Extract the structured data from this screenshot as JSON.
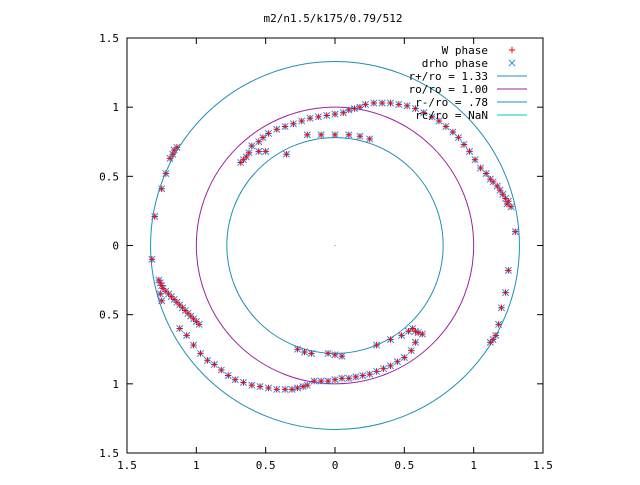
{
  "chart_data": {
    "type": "scatter",
    "title": "m2/n1.5/k175/0.79/512",
    "xlim": [
      -1.5,
      1.5
    ],
    "ylim": [
      -1.5,
      1.5
    ],
    "grid": false,
    "legend_position": "top-right",
    "x_ticks": [
      {
        "value": -1.5,
        "label": "1.5"
      },
      {
        "value": -1.0,
        "label": "1"
      },
      {
        "value": -0.5,
        "label": "0.5"
      },
      {
        "value": 0.0,
        "label": "0"
      },
      {
        "value": 0.5,
        "label": "0.5"
      },
      {
        "value": 1.0,
        "label": "1"
      },
      {
        "value": 1.5,
        "label": "1.5"
      }
    ],
    "y_ticks": [
      {
        "value": 1.5,
        "label": "1.5"
      },
      {
        "value": 1.0,
        "label": "1"
      },
      {
        "value": 0.5,
        "label": "0.5"
      },
      {
        "value": 0.0,
        "label": "0"
      },
      {
        "value": -0.5,
        "label": "0.5"
      },
      {
        "value": -1.0,
        "label": "1"
      },
      {
        "value": -1.5,
        "label": "1.5"
      }
    ],
    "circles": [
      {
        "name": "r+/ro = 1.33",
        "radius": 1.33,
        "color": "#1e90b4"
      },
      {
        "name": "ro/ro = 1.00",
        "radius": 1.0,
        "color": "#a020a0"
      },
      {
        "name": "r-/ro = .78",
        "radius": 0.78,
        "color": "#1e90b4"
      },
      {
        "name": "rc/ro = NaN",
        "radius": null,
        "color": "#00c8c8"
      }
    ],
    "series": [
      {
        "name": "W phase",
        "marker": "+",
        "color": "#ff0000",
        "points": [
          [
            -1.32,
            -0.1
          ],
          [
            -1.3,
            0.21
          ],
          [
            -1.25,
            0.41
          ],
          [
            -1.22,
            0.52
          ],
          [
            -1.19,
            0.63
          ],
          [
            -1.17,
            0.66
          ],
          [
            -1.16,
            0.69
          ],
          [
            -1.14,
            0.71
          ],
          [
            -1.27,
            -0.25
          ],
          [
            -1.26,
            -0.27
          ],
          [
            -1.25,
            -0.29
          ],
          [
            -1.24,
            -0.31
          ],
          [
            -1.22,
            -0.33
          ],
          [
            -1.2,
            -0.35
          ],
          [
            -1.18,
            -0.37
          ],
          [
            -1.16,
            -0.39
          ],
          [
            -1.14,
            -0.41
          ],
          [
            -1.12,
            -0.43
          ],
          [
            -1.1,
            -0.45
          ],
          [
            -1.08,
            -0.47
          ],
          [
            -1.06,
            -0.49
          ],
          [
            -1.04,
            -0.51
          ],
          [
            -1.02,
            -0.53
          ],
          [
            -1.0,
            -0.55
          ],
          [
            -0.98,
            -0.57
          ],
          [
            -1.26,
            -0.35
          ],
          [
            -1.25,
            -0.4
          ],
          [
            -1.12,
            -0.6
          ],
          [
            -1.07,
            -0.65
          ],
          [
            -1.02,
            -0.72
          ],
          [
            -0.97,
            -0.78
          ],
          [
            -0.92,
            -0.83
          ],
          [
            -0.87,
            -0.86
          ],
          [
            -0.82,
            -0.9
          ],
          [
            -0.77,
            -0.94
          ],
          [
            -0.72,
            -0.97
          ],
          [
            -0.66,
            -0.99
          ],
          [
            -0.6,
            -1.01
          ],
          [
            -0.54,
            -1.02
          ],
          [
            -0.48,
            -1.03
          ],
          [
            -0.42,
            -1.04
          ],
          [
            -0.36,
            -1.04
          ],
          [
            -0.31,
            -1.04
          ],
          [
            -0.27,
            -1.03
          ],
          [
            -0.23,
            -1.02
          ],
          [
            -0.2,
            -1.01
          ],
          [
            -0.15,
            -0.98
          ],
          [
            -0.1,
            -0.98
          ],
          [
            -0.05,
            -0.98
          ],
          [
            0.0,
            -0.97
          ],
          [
            0.05,
            -0.96
          ],
          [
            0.1,
            -0.96
          ],
          [
            0.15,
            -0.95
          ],
          [
            0.2,
            -0.94
          ],
          [
            0.25,
            -0.93
          ],
          [
            0.3,
            -0.91
          ],
          [
            0.35,
            -0.89
          ],
          [
            0.4,
            -0.87
          ],
          [
            0.45,
            -0.84
          ],
          [
            0.5,
            -0.81
          ],
          [
            0.55,
            -0.76
          ],
          [
            0.58,
            -0.7
          ],
          [
            -0.27,
            -0.75
          ],
          [
            -0.22,
            -0.77
          ],
          [
            -0.17,
            -0.78
          ],
          [
            -0.05,
            -0.78
          ],
          [
            0.0,
            -0.79
          ],
          [
            0.05,
            -0.8
          ],
          [
            0.3,
            -0.72
          ],
          [
            0.4,
            -0.68
          ],
          [
            0.48,
            -0.65
          ],
          [
            0.53,
            -0.62
          ],
          [
            0.56,
            -0.6
          ],
          [
            0.58,
            -0.62
          ],
          [
            0.6,
            -0.63
          ],
          [
            0.63,
            -0.64
          ],
          [
            1.12,
            -0.7
          ],
          [
            1.14,
            -0.68
          ],
          [
            1.16,
            -0.65
          ],
          [
            1.18,
            -0.57
          ],
          [
            1.2,
            -0.45
          ],
          [
            1.23,
            -0.34
          ],
          [
            1.25,
            -0.18
          ],
          [
            1.3,
            0.1
          ],
          [
            1.27,
            0.28
          ],
          [
            1.25,
            0.32
          ],
          [
            1.24,
            0.3
          ],
          [
            1.23,
            0.34
          ],
          [
            1.21,
            0.37
          ],
          [
            1.19,
            0.4
          ],
          [
            1.17,
            0.43
          ],
          [
            1.14,
            0.46
          ],
          [
            1.12,
            0.48
          ],
          [
            1.09,
            0.52
          ],
          [
            1.05,
            0.56
          ],
          [
            1.01,
            0.62
          ],
          [
            0.97,
            0.68
          ],
          [
            0.93,
            0.73
          ],
          [
            0.89,
            0.78
          ],
          [
            0.85,
            0.82
          ],
          [
            0.8,
            0.86
          ],
          [
            0.75,
            0.9
          ],
          [
            0.7,
            0.93
          ],
          [
            0.64,
            0.96
          ],
          [
            0.58,
            0.99
          ],
          [
            0.52,
            1.01
          ],
          [
            0.46,
            1.02
          ],
          [
            0.4,
            1.03
          ],
          [
            0.34,
            1.03
          ],
          [
            0.28,
            1.03
          ],
          [
            0.22,
            1.02
          ],
          [
            0.18,
            1.0
          ],
          [
            0.14,
            0.99
          ],
          [
            0.1,
            0.98
          ],
          [
            0.06,
            0.96
          ],
          [
            0.0,
            0.95
          ],
          [
            -0.06,
            0.94
          ],
          [
            -0.12,
            0.93
          ],
          [
            -0.18,
            0.92
          ],
          [
            -0.24,
            0.9
          ],
          [
            -0.3,
            0.88
          ],
          [
            -0.36,
            0.86
          ],
          [
            -0.42,
            0.84
          ],
          [
            -0.48,
            0.81
          ],
          [
            -0.52,
            0.78
          ],
          [
            -0.55,
            0.75
          ],
          [
            -0.6,
            0.72
          ],
          [
            -0.62,
            0.67
          ],
          [
            -0.64,
            0.64
          ],
          [
            -0.66,
            0.62
          ],
          [
            -0.68,
            0.6
          ],
          [
            -0.55,
            0.68
          ],
          [
            -0.5,
            0.68
          ],
          [
            -0.35,
            0.66
          ],
          [
            -0.2,
            0.8
          ],
          [
            -0.1,
            0.8
          ],
          [
            0.0,
            0.8
          ],
          [
            0.1,
            0.8
          ],
          [
            0.18,
            0.79
          ],
          [
            0.25,
            0.77
          ]
        ]
      },
      {
        "name": "drho phase",
        "marker": "x",
        "color": "#1e8cf0",
        "points": [
          [
            -1.32,
            -0.1
          ],
          [
            -1.3,
            0.21
          ],
          [
            -1.25,
            0.41
          ],
          [
            -1.22,
            0.52
          ],
          [
            -1.19,
            0.63
          ],
          [
            -1.17,
            0.66
          ],
          [
            -1.16,
            0.69
          ],
          [
            -1.14,
            0.71
          ],
          [
            -1.27,
            -0.25
          ],
          [
            -1.26,
            -0.27
          ],
          [
            -1.25,
            -0.29
          ],
          [
            -1.24,
            -0.31
          ],
          [
            -1.22,
            -0.33
          ],
          [
            -1.2,
            -0.35
          ],
          [
            -1.18,
            -0.37
          ],
          [
            -1.16,
            -0.39
          ],
          [
            -1.14,
            -0.41
          ],
          [
            -1.12,
            -0.43
          ],
          [
            -1.1,
            -0.45
          ],
          [
            -1.08,
            -0.47
          ],
          [
            -1.06,
            -0.49
          ],
          [
            -1.04,
            -0.51
          ],
          [
            -1.02,
            -0.53
          ],
          [
            -1.0,
            -0.55
          ],
          [
            -0.98,
            -0.57
          ],
          [
            -1.26,
            -0.35
          ],
          [
            -1.25,
            -0.4
          ],
          [
            -1.12,
            -0.6
          ],
          [
            -1.07,
            -0.65
          ],
          [
            -1.02,
            -0.72
          ],
          [
            -0.97,
            -0.78
          ],
          [
            -0.92,
            -0.83
          ],
          [
            -0.87,
            -0.86
          ],
          [
            -0.82,
            -0.9
          ],
          [
            -0.77,
            -0.94
          ],
          [
            -0.72,
            -0.97
          ],
          [
            -0.66,
            -0.99
          ],
          [
            -0.6,
            -1.01
          ],
          [
            -0.54,
            -1.02
          ],
          [
            -0.48,
            -1.03
          ],
          [
            -0.42,
            -1.04
          ],
          [
            -0.36,
            -1.04
          ],
          [
            -0.31,
            -1.04
          ],
          [
            -0.27,
            -1.03
          ],
          [
            -0.23,
            -1.02
          ],
          [
            -0.2,
            -1.01
          ],
          [
            -0.15,
            -0.98
          ],
          [
            -0.1,
            -0.98
          ],
          [
            -0.05,
            -0.98
          ],
          [
            0.0,
            -0.97
          ],
          [
            0.05,
            -0.96
          ],
          [
            0.1,
            -0.96
          ],
          [
            0.15,
            -0.95
          ],
          [
            0.2,
            -0.94
          ],
          [
            0.25,
            -0.93
          ],
          [
            0.3,
            -0.91
          ],
          [
            0.35,
            -0.89
          ],
          [
            0.4,
            -0.87
          ],
          [
            0.45,
            -0.84
          ],
          [
            0.5,
            -0.81
          ],
          [
            0.55,
            -0.76
          ],
          [
            0.58,
            -0.7
          ],
          [
            -0.27,
            -0.75
          ],
          [
            -0.22,
            -0.77
          ],
          [
            -0.17,
            -0.78
          ],
          [
            -0.05,
            -0.78
          ],
          [
            0.0,
            -0.79
          ],
          [
            0.05,
            -0.8
          ],
          [
            0.3,
            -0.72
          ],
          [
            0.4,
            -0.68
          ],
          [
            0.48,
            -0.65
          ],
          [
            0.53,
            -0.62
          ],
          [
            0.56,
            -0.6
          ],
          [
            0.58,
            -0.62
          ],
          [
            0.6,
            -0.63
          ],
          [
            0.63,
            -0.64
          ],
          [
            1.12,
            -0.7
          ],
          [
            1.14,
            -0.68
          ],
          [
            1.16,
            -0.65
          ],
          [
            1.18,
            -0.57
          ],
          [
            1.2,
            -0.45
          ],
          [
            1.23,
            -0.34
          ],
          [
            1.25,
            -0.18
          ],
          [
            1.3,
            0.1
          ],
          [
            1.27,
            0.28
          ],
          [
            1.25,
            0.32
          ],
          [
            1.24,
            0.3
          ],
          [
            1.23,
            0.34
          ],
          [
            1.21,
            0.37
          ],
          [
            1.19,
            0.4
          ],
          [
            1.17,
            0.43
          ],
          [
            1.14,
            0.46
          ],
          [
            1.12,
            0.48
          ],
          [
            1.09,
            0.52
          ],
          [
            1.05,
            0.56
          ],
          [
            1.01,
            0.62
          ],
          [
            0.97,
            0.68
          ],
          [
            0.93,
            0.73
          ],
          [
            0.89,
            0.78
          ],
          [
            0.85,
            0.82
          ],
          [
            0.8,
            0.86
          ],
          [
            0.75,
            0.9
          ],
          [
            0.7,
            0.93
          ],
          [
            0.64,
            0.96
          ],
          [
            0.58,
            0.99
          ],
          [
            0.52,
            1.01
          ],
          [
            0.46,
            1.02
          ],
          [
            0.4,
            1.03
          ],
          [
            0.34,
            1.03
          ],
          [
            0.28,
            1.03
          ],
          [
            0.22,
            1.02
          ],
          [
            0.18,
            1.0
          ],
          [
            0.14,
            0.99
          ],
          [
            0.1,
            0.98
          ],
          [
            0.06,
            0.96
          ],
          [
            0.0,
            0.95
          ],
          [
            -0.06,
            0.94
          ],
          [
            -0.12,
            0.93
          ],
          [
            -0.18,
            0.92
          ],
          [
            -0.24,
            0.9
          ],
          [
            -0.3,
            0.88
          ],
          [
            -0.36,
            0.86
          ],
          [
            -0.42,
            0.84
          ],
          [
            -0.48,
            0.81
          ],
          [
            -0.52,
            0.78
          ],
          [
            -0.55,
            0.75
          ],
          [
            -0.6,
            0.72
          ],
          [
            -0.62,
            0.67
          ],
          [
            -0.64,
            0.64
          ],
          [
            -0.66,
            0.62
          ],
          [
            -0.68,
            0.6
          ],
          [
            -0.55,
            0.68
          ],
          [
            -0.5,
            0.68
          ],
          [
            -0.35,
            0.66
          ],
          [
            -0.2,
            0.8
          ],
          [
            -0.1,
            0.8
          ],
          [
            0.0,
            0.8
          ],
          [
            0.1,
            0.8
          ],
          [
            0.18,
            0.79
          ],
          [
            0.25,
            0.77
          ]
        ]
      }
    ]
  }
}
